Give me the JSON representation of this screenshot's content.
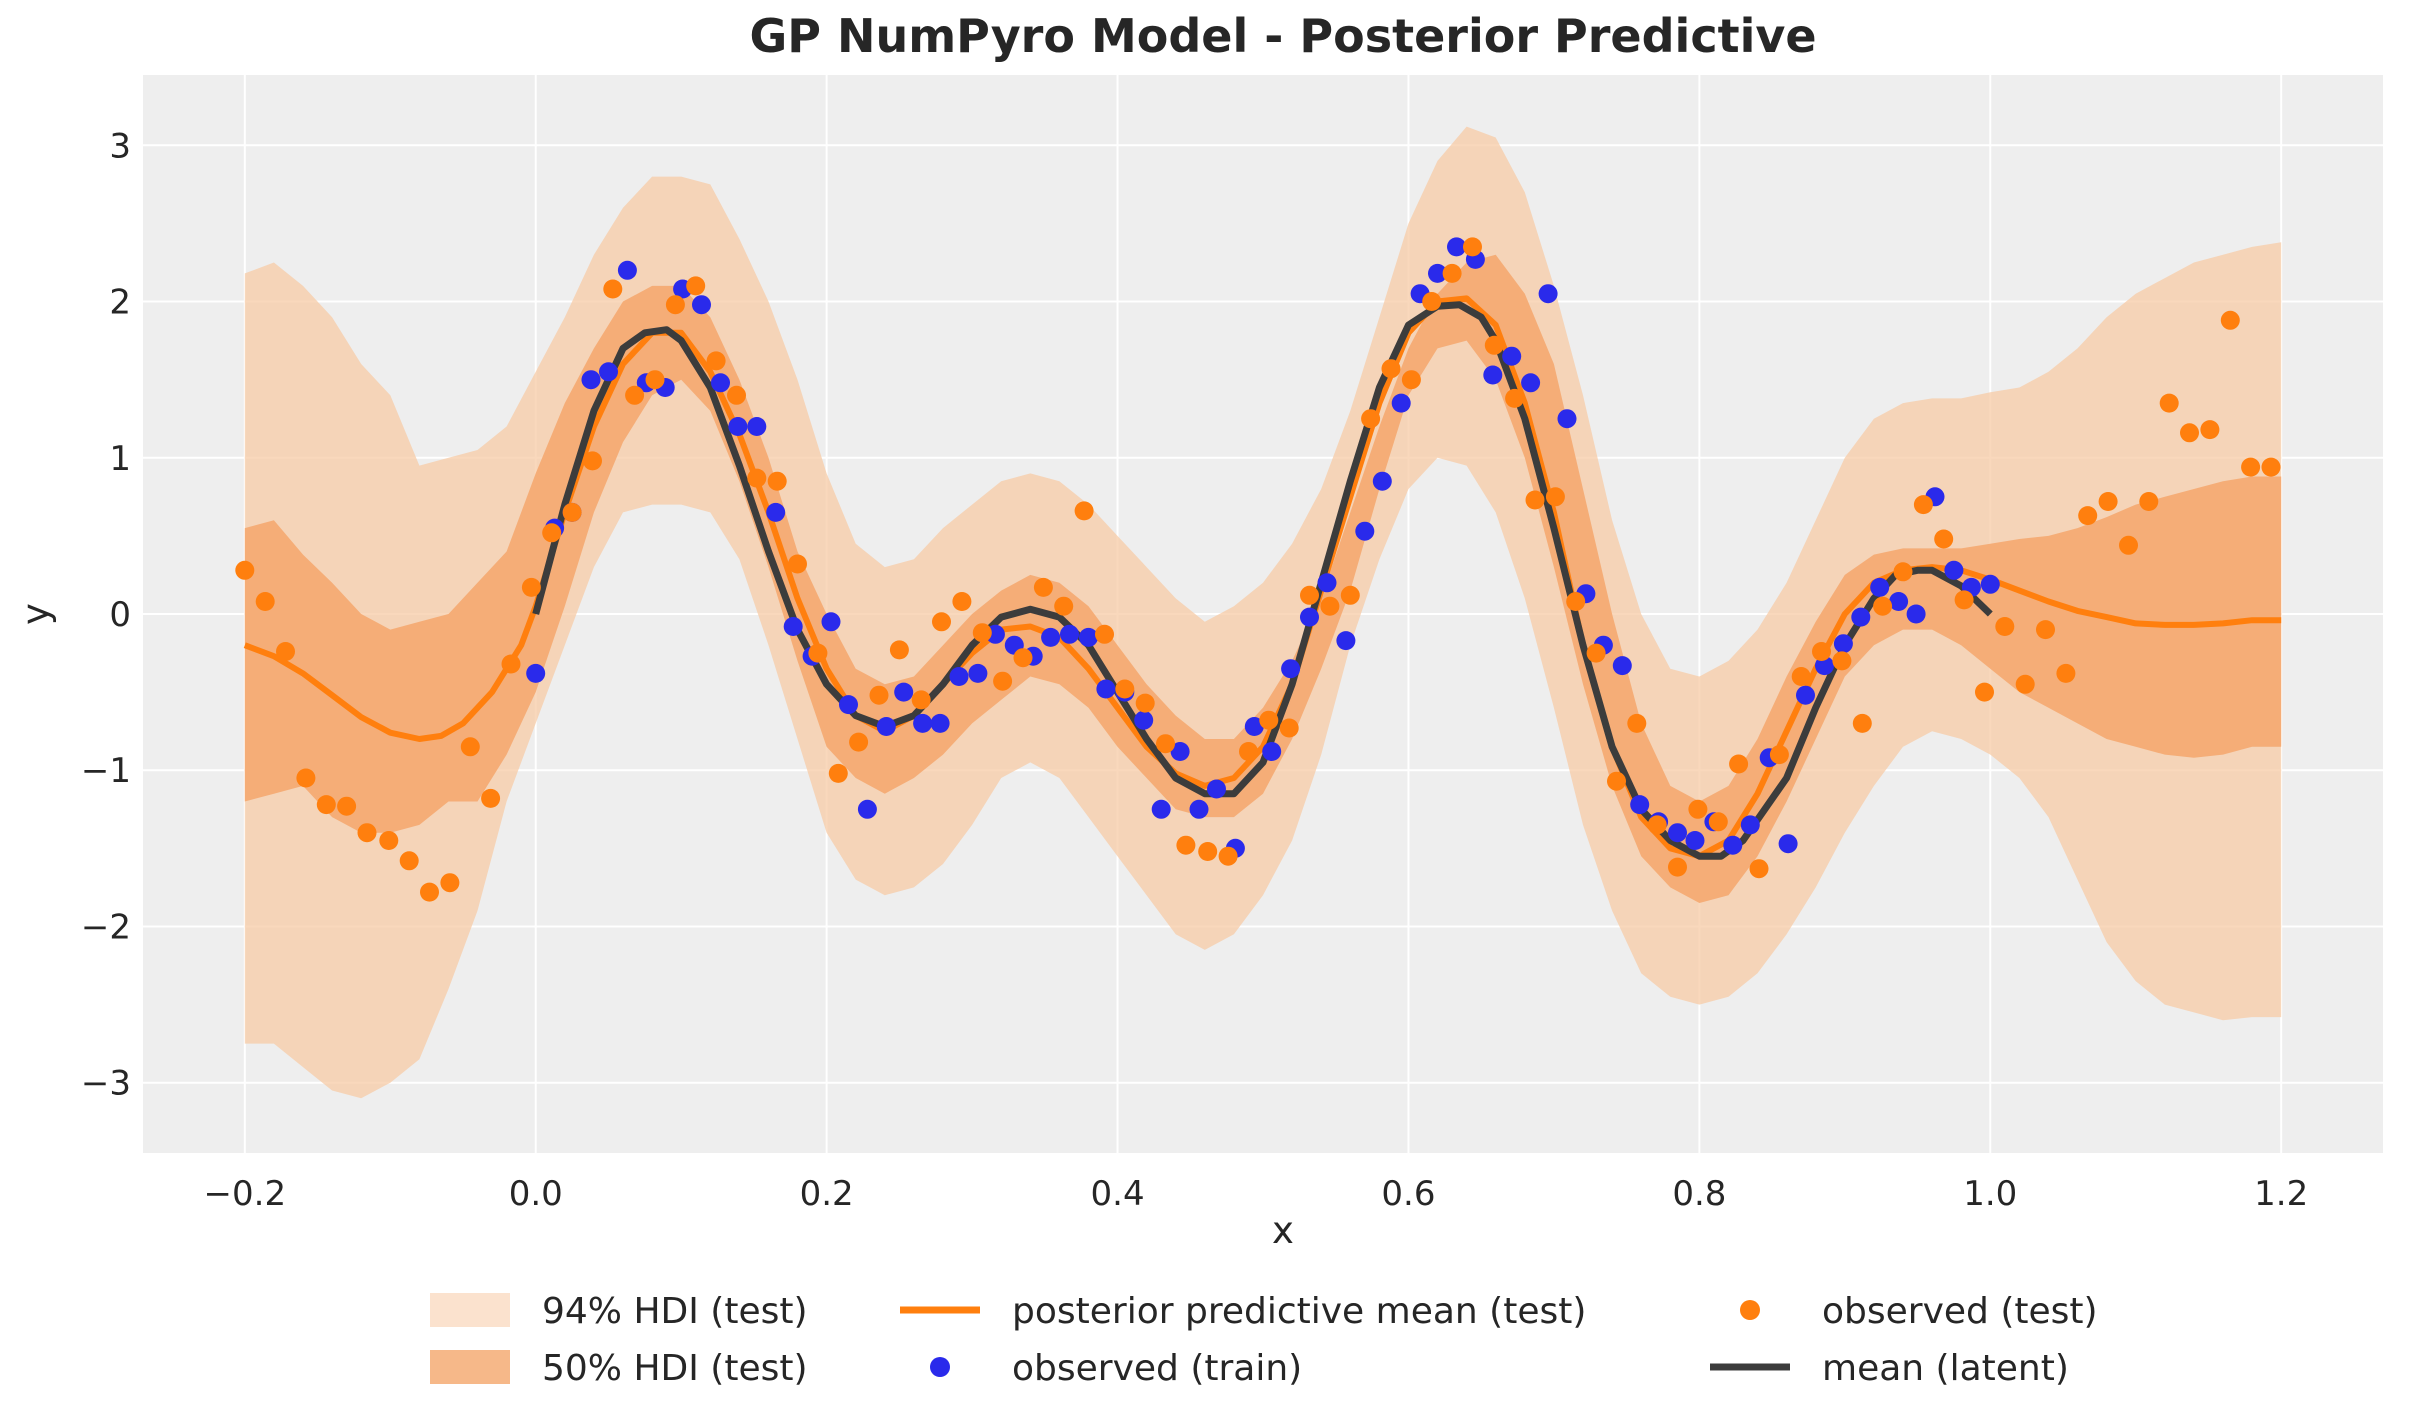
{
  "chart_data": {
    "type": "line",
    "title": "GP NumPyro Model - Posterior Predictive",
    "xlabel": "x",
    "ylabel": "y",
    "xlim": [
      -0.27,
      1.27
    ],
    "ylim": [
      -3.45,
      3.45
    ],
    "xticks": [
      -0.2,
      0.0,
      0.2,
      0.4,
      0.6,
      0.8,
      1.0,
      1.2
    ],
    "xtick_labels": [
      "−0.2",
      "0.0",
      "0.2",
      "0.4",
      "0.6",
      "0.8",
      "1.0",
      "1.2"
    ],
    "yticks": [
      -3,
      -2,
      -1,
      0,
      1,
      2,
      3
    ],
    "ytick_labels": [
      "−3",
      "−2",
      "−1",
      "0",
      "1",
      "2",
      "3"
    ],
    "grid": true,
    "legend_position": "bottom-center",
    "colors": {
      "background": "#eeeeee",
      "grid": "#ffffff",
      "hdi94": "#f7cba5",
      "hdi50": "#f4a66b",
      "pp_mean": "#ff7f0e",
      "train": "#2a2aeb",
      "test": "#ff7f0e",
      "latent": "#3c3c3c"
    },
    "legend": [
      {
        "key": "hdi94",
        "label": "94% HDI (test)",
        "kind": "patch"
      },
      {
        "key": "hdi50",
        "label": "50% HDI (test)",
        "kind": "patch"
      },
      {
        "key": "pp_mean",
        "label": "posterior predictive mean (test)",
        "kind": "line"
      },
      {
        "key": "train",
        "label": "observed (train)",
        "kind": "dot"
      },
      {
        "key": "test",
        "label": "observed (test)",
        "kind": "dot"
      },
      {
        "key": "latent",
        "label": "mean (latent)",
        "kind": "line"
      }
    ],
    "hdi_x": [
      -0.2,
      -0.18,
      -0.16,
      -0.14,
      -0.12,
      -0.1,
      -0.08,
      -0.06,
      -0.04,
      -0.02,
      0.0,
      0.02,
      0.04,
      0.06,
      0.08,
      0.1,
      0.12,
      0.14,
      0.16,
      0.18,
      0.2,
      0.22,
      0.24,
      0.26,
      0.28,
      0.3,
      0.32,
      0.34,
      0.36,
      0.38,
      0.4,
      0.42,
      0.44,
      0.46,
      0.48,
      0.5,
      0.52,
      0.54,
      0.56,
      0.58,
      0.6,
      0.62,
      0.64,
      0.66,
      0.68,
      0.7,
      0.72,
      0.74,
      0.76,
      0.78,
      0.8,
      0.82,
      0.84,
      0.86,
      0.88,
      0.9,
      0.92,
      0.94,
      0.96,
      0.98,
      1.0,
      1.02,
      1.04,
      1.06,
      1.08,
      1.1,
      1.12,
      1.14,
      1.16,
      1.18,
      1.2
    ],
    "hdi94_upper": [
      2.18,
      2.25,
      2.1,
      1.9,
      1.6,
      1.4,
      0.95,
      1.0,
      1.05,
      1.2,
      1.55,
      1.9,
      2.3,
      2.6,
      2.8,
      2.8,
      2.75,
      2.4,
      2.0,
      1.5,
      0.9,
      0.45,
      0.3,
      0.35,
      0.55,
      0.7,
      0.85,
      0.9,
      0.85,
      0.7,
      0.5,
      0.3,
      0.1,
      -0.05,
      0.05,
      0.2,
      0.45,
      0.8,
      1.3,
      1.9,
      2.5,
      2.9,
      3.12,
      3.05,
      2.7,
      2.1,
      1.4,
      0.6,
      0.0,
      -0.35,
      -0.4,
      -0.3,
      -0.1,
      0.2,
      0.6,
      1.0,
      1.25,
      1.35,
      1.38,
      1.38,
      1.42,
      1.45,
      1.55,
      1.7,
      1.9,
      2.05,
      2.15,
      2.25,
      2.3,
      2.35,
      2.38
    ],
    "hdi94_lower": [
      -2.75,
      -2.75,
      -2.9,
      -3.05,
      -3.1,
      -3.0,
      -2.85,
      -2.4,
      -1.9,
      -1.2,
      -0.7,
      -0.2,
      0.3,
      0.65,
      0.7,
      0.7,
      0.65,
      0.35,
      -0.2,
      -0.8,
      -1.4,
      -1.7,
      -1.8,
      -1.75,
      -1.6,
      -1.35,
      -1.05,
      -0.95,
      -1.05,
      -1.3,
      -1.55,
      -1.8,
      -2.05,
      -2.15,
      -2.05,
      -1.8,
      -1.45,
      -0.9,
      -0.2,
      0.35,
      0.8,
      1.0,
      0.95,
      0.65,
      0.1,
      -0.6,
      -1.35,
      -1.9,
      -2.3,
      -2.45,
      -2.5,
      -2.45,
      -2.3,
      -2.05,
      -1.75,
      -1.4,
      -1.1,
      -0.85,
      -0.75,
      -0.8,
      -0.9,
      -1.05,
      -1.3,
      -1.7,
      -2.1,
      -2.35,
      -2.5,
      -2.55,
      -2.6,
      -2.58,
      -2.58
    ],
    "hdi50_upper": [
      0.55,
      0.6,
      0.38,
      0.2,
      0.0,
      -0.1,
      -0.05,
      0.0,
      0.2,
      0.4,
      0.9,
      1.35,
      1.7,
      2.0,
      2.1,
      2.1,
      1.9,
      1.5,
      1.0,
      0.4,
      0.0,
      -0.35,
      -0.45,
      -0.4,
      -0.2,
      0.0,
      0.15,
      0.25,
      0.2,
      0.05,
      -0.2,
      -0.45,
      -0.65,
      -0.8,
      -0.8,
      -0.6,
      -0.3,
      0.1,
      0.65,
      1.2,
      1.7,
      2.05,
      2.25,
      2.3,
      2.05,
      1.6,
      0.8,
      0.0,
      -0.7,
      -1.1,
      -1.2,
      -1.1,
      -0.8,
      -0.4,
      -0.05,
      0.25,
      0.38,
      0.42,
      0.42,
      0.42,
      0.45,
      0.48,
      0.5,
      0.55,
      0.62,
      0.7,
      0.75,
      0.8,
      0.85,
      0.88,
      0.88
    ],
    "hdi50_lower": [
      -1.2,
      -1.15,
      -1.1,
      -1.3,
      -1.4,
      -1.4,
      -1.35,
      -1.2,
      -1.2,
      -0.9,
      -0.5,
      0.05,
      0.65,
      1.1,
      1.4,
      1.5,
      1.3,
      0.85,
      0.3,
      -0.3,
      -0.85,
      -1.05,
      -1.15,
      -1.05,
      -0.9,
      -0.7,
      -0.55,
      -0.4,
      -0.45,
      -0.6,
      -0.85,
      -1.05,
      -1.25,
      -1.3,
      -1.3,
      -1.15,
      -0.8,
      -0.35,
      0.15,
      0.8,
      1.4,
      1.7,
      1.75,
      1.5,
      1.0,
      0.3,
      -0.45,
      -1.1,
      -1.55,
      -1.75,
      -1.85,
      -1.8,
      -1.55,
      -1.2,
      -0.8,
      -0.4,
      -0.2,
      -0.1,
      -0.1,
      -0.2,
      -0.35,
      -0.5,
      -0.6,
      -0.7,
      -0.8,
      -0.85,
      -0.9,
      -0.92,
      -0.9,
      -0.85,
      -0.85
    ],
    "pp_mean": {
      "x": [
        -0.2,
        -0.18,
        -0.16,
        -0.14,
        -0.12,
        -0.1,
        -0.08,
        -0.065,
        -0.05,
        -0.03,
        -0.01,
        0.0,
        0.02,
        0.04,
        0.06,
        0.08,
        0.1,
        0.12,
        0.14,
        0.16,
        0.18,
        0.2,
        0.22,
        0.24,
        0.26,
        0.28,
        0.3,
        0.32,
        0.34,
        0.36,
        0.38,
        0.4,
        0.42,
        0.44,
        0.46,
        0.48,
        0.5,
        0.52,
        0.54,
        0.56,
        0.58,
        0.6,
        0.62,
        0.64,
        0.66,
        0.68,
        0.7,
        0.72,
        0.74,
        0.76,
        0.78,
        0.8,
        0.82,
        0.84,
        0.86,
        0.88,
        0.9,
        0.92,
        0.94,
        0.96,
        0.98,
        1.0,
        1.02,
        1.04,
        1.06,
        1.08,
        1.1,
        1.12,
        1.14,
        1.16,
        1.18,
        1.2
      ],
      "y": [
        -0.2,
        -0.27,
        -0.38,
        -0.52,
        -0.66,
        -0.76,
        -0.8,
        -0.78,
        -0.7,
        -0.5,
        -0.2,
        0.05,
        0.65,
        1.2,
        1.6,
        1.8,
        1.8,
        1.55,
        1.15,
        0.65,
        0.1,
        -0.35,
        -0.65,
        -0.75,
        -0.65,
        -0.45,
        -0.25,
        -0.1,
        -0.08,
        -0.15,
        -0.35,
        -0.6,
        -0.85,
        -1.02,
        -1.1,
        -1.05,
        -0.85,
        -0.45,
        0.15,
        0.75,
        1.35,
        1.8,
        2.0,
        2.02,
        1.85,
        1.35,
        0.65,
        -0.2,
        -0.85,
        -1.3,
        -1.5,
        -1.55,
        -1.45,
        -1.15,
        -0.75,
        -0.35,
        0.0,
        0.2,
        0.28,
        0.3,
        0.28,
        0.22,
        0.15,
        0.08,
        0.02,
        -0.02,
        -0.06,
        -0.07,
        -0.07,
        -0.06,
        -0.04,
        -0.04
      ]
    },
    "latent_mean": {
      "x": [
        0.0,
        0.02,
        0.04,
        0.06,
        0.075,
        0.09,
        0.1,
        0.12,
        0.14,
        0.16,
        0.18,
        0.2,
        0.22,
        0.24,
        0.26,
        0.28,
        0.3,
        0.32,
        0.34,
        0.36,
        0.38,
        0.4,
        0.42,
        0.44,
        0.46,
        0.48,
        0.5,
        0.52,
        0.54,
        0.56,
        0.58,
        0.6,
        0.62,
        0.635,
        0.65,
        0.66,
        0.68,
        0.7,
        0.72,
        0.74,
        0.76,
        0.78,
        0.8,
        0.815,
        0.83,
        0.86,
        0.88,
        0.9,
        0.92,
        0.935,
        0.95,
        0.96,
        0.98,
        1.0
      ],
      "y": [
        0.0,
        0.7,
        1.3,
        1.7,
        1.8,
        1.82,
        1.75,
        1.45,
        0.95,
        0.4,
        -0.1,
        -0.45,
        -0.65,
        -0.72,
        -0.65,
        -0.45,
        -0.2,
        -0.02,
        0.03,
        -0.02,
        -0.2,
        -0.5,
        -0.8,
        -1.05,
        -1.15,
        -1.15,
        -0.95,
        -0.45,
        0.2,
        0.85,
        1.45,
        1.85,
        1.97,
        1.98,
        1.9,
        1.75,
        1.25,
        0.55,
        -0.2,
        -0.85,
        -1.25,
        -1.45,
        -1.55,
        -1.55,
        -1.45,
        -1.05,
        -0.6,
        -0.2,
        0.1,
        0.25,
        0.28,
        0.28,
        0.18,
        0.0
      ]
    },
    "observed_train": {
      "x": [
        0.0,
        0.013,
        0.025,
        0.038,
        0.05,
        0.063,
        0.076,
        0.089,
        0.101,
        0.114,
        0.127,
        0.139,
        0.152,
        0.165,
        0.177,
        0.19,
        0.203,
        0.215,
        0.228,
        0.241,
        0.253,
        0.266,
        0.278,
        0.291,
        0.304,
        0.316,
        0.329,
        0.342,
        0.354,
        0.367,
        0.38,
        0.392,
        0.405,
        0.418,
        0.43,
        0.443,
        0.456,
        0.468,
        0.481,
        0.494,
        0.506,
        0.519,
        0.532,
        0.544,
        0.557,
        0.57,
        0.582,
        0.595,
        0.608,
        0.62,
        0.633,
        0.646,
        0.658,
        0.671,
        0.684,
        0.696,
        0.709,
        0.722,
        0.734,
        0.747,
        0.759,
        0.772,
        0.785,
        0.797,
        0.81,
        0.823,
        0.835,
        0.848,
        0.861,
        0.873,
        0.886,
        0.899,
        0.911,
        0.924,
        0.937,
        0.949,
        0.962,
        0.975,
        0.987,
        1.0
      ],
      "y": [
        -0.38,
        0.55,
        0.65,
        1.5,
        1.55,
        2.2,
        1.48,
        1.45,
        2.08,
        1.98,
        1.48,
        1.2,
        1.2,
        0.65,
        -0.08,
        -0.27,
        -0.05,
        -0.58,
        -1.25,
        -0.72,
        -0.5,
        -0.7,
        -0.7,
        -0.4,
        -0.38,
        -0.13,
        -0.2,
        -0.27,
        -0.15,
        -0.13,
        -0.15,
        -0.48,
        -0.5,
        -0.68,
        -1.25,
        -0.88,
        -1.25,
        -1.12,
        -1.5,
        -0.72,
        -0.88,
        -0.35,
        -0.02,
        0.2,
        -0.17,
        0.53,
        0.85,
        1.35,
        2.05,
        2.18,
        2.35,
        2.27,
        1.53,
        1.65,
        1.48,
        2.05,
        1.25,
        0.13,
        -0.2,
        -0.33,
        -1.22,
        -1.33,
        -1.4,
        -1.45,
        -1.33,
        -1.48,
        -1.35,
        -0.92,
        -1.47,
        -0.52,
        -0.33,
        -0.19,
        -0.02,
        0.17,
        0.08,
        0.0,
        0.75,
        0.28,
        0.17,
        0.19
      ]
    },
    "observed_test": {
      "x": [
        -0.2,
        -0.186,
        -0.172,
        -0.158,
        -0.144,
        -0.13,
        -0.116,
        -0.101,
        -0.087,
        -0.073,
        -0.059,
        -0.045,
        -0.031,
        -0.017,
        -0.003,
        0.011,
        0.025,
        0.039,
        0.053,
        0.068,
        0.082,
        0.096,
        0.11,
        0.124,
        0.138,
        0.152,
        0.166,
        0.18,
        0.194,
        0.208,
        0.222,
        0.236,
        0.25,
        0.265,
        0.279,
        0.293,
        0.307,
        0.321,
        0.335,
        0.349,
        0.363,
        0.377,
        0.391,
        0.405,
        0.419,
        0.433,
        0.447,
        0.462,
        0.476,
        0.49,
        0.504,
        0.518,
        0.532,
        0.546,
        0.56,
        0.574,
        0.588,
        0.602,
        0.616,
        0.63,
        0.644,
        0.659,
        0.673,
        0.687,
        0.701,
        0.715,
        0.729,
        0.743,
        0.757,
        0.771,
        0.785,
        0.799,
        0.813,
        0.827,
        0.841,
        0.855,
        0.87,
        0.884,
        0.898,
        0.912,
        0.926,
        0.94,
        0.954,
        0.968,
        0.982,
        0.996,
        1.01,
        1.024,
        1.038,
        1.052,
        1.067,
        1.081,
        1.095,
        1.109,
        1.123,
        1.137,
        1.151,
        1.165,
        1.179,
        1.193
      ],
      "y": [
        0.28,
        0.08,
        -0.24,
        -1.05,
        -1.22,
        -1.23,
        -1.4,
        -1.45,
        -1.58,
        -1.78,
        -1.72,
        -0.85,
        -1.18,
        -0.32,
        0.17,
        0.52,
        0.65,
        0.98,
        2.08,
        1.4,
        1.5,
        1.98,
        2.1,
        1.62,
        1.4,
        0.87,
        0.85,
        0.32,
        -0.25,
        -1.02,
        -0.82,
        -0.52,
        -0.23,
        -0.55,
        -0.05,
        0.08,
        -0.12,
        -0.43,
        -0.28,
        0.17,
        0.05,
        0.66,
        -0.13,
        -0.48,
        -0.57,
        -0.83,
        -1.48,
        -1.52,
        -1.55,
        -0.88,
        -0.68,
        -0.73,
        0.12,
        0.05,
        0.12,
        1.25,
        1.57,
        1.5,
        2.0,
        2.18,
        2.35,
        1.72,
        1.38,
        0.73,
        0.75,
        0.08,
        -0.25,
        -1.07,
        -0.7,
        -1.35,
        -1.62,
        -1.25,
        -1.33,
        -0.96,
        -1.63,
        -0.9,
        -0.4,
        -0.24,
        -0.3,
        -0.7,
        0.05,
        0.27,
        0.7,
        0.48,
        0.09,
        -0.5,
        -0.08,
        -0.45,
        -0.1,
        -0.38,
        0.63,
        0.72,
        0.44,
        0.72,
        1.35,
        1.16,
        1.18,
        1.88,
        0.94,
        0.94
      ]
    }
  }
}
